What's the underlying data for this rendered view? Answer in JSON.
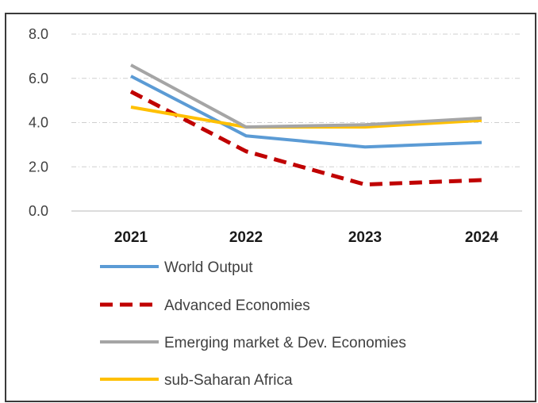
{
  "chart_data": {
    "type": "line",
    "title": "",
    "xlabel": "",
    "ylabel": "",
    "categories": [
      "2021",
      "2022",
      "2023",
      "2024"
    ],
    "ylim": [
      0,
      8
    ],
    "yticks": [
      "0.0",
      "2.0",
      "4.0",
      "6.0",
      "8.0"
    ],
    "grid": true,
    "legend_position": "bottom",
    "series": [
      {
        "name": "World Output",
        "values": [
          6.1,
          3.4,
          2.9,
          3.1
        ],
        "color": "#5b9bd5",
        "style": "solid"
      },
      {
        "name": "Advanced Economies",
        "values": [
          5.4,
          2.7,
          1.2,
          1.4
        ],
        "color": "#c00000",
        "style": "dashed"
      },
      {
        "name": "Emerging market & Dev. Economies",
        "values": [
          6.6,
          3.8,
          3.9,
          4.2
        ],
        "color": "#a5a5a5",
        "style": "solid"
      },
      {
        "name": "sub-Saharan Africa",
        "values": [
          4.7,
          3.8,
          3.8,
          4.1
        ],
        "color": "#ffc000",
        "style": "solid"
      }
    ]
  }
}
